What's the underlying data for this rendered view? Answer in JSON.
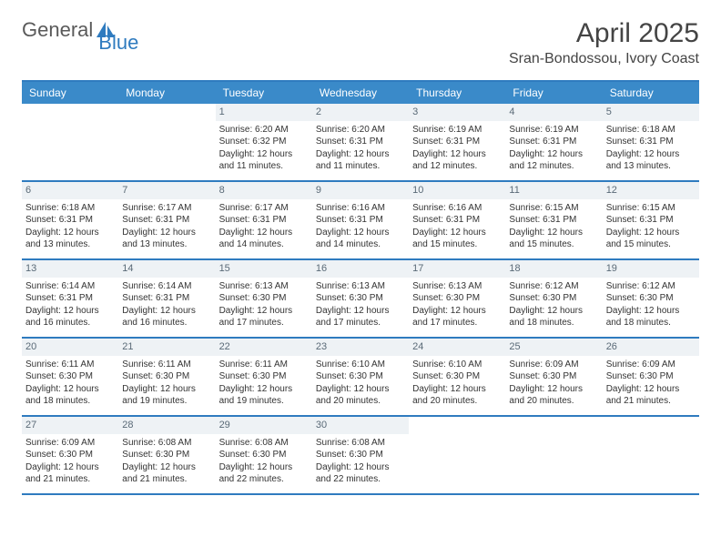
{
  "logo": {
    "text1": "General",
    "text2": "Blue"
  },
  "title": "April 2025",
  "location": "Sran-Bondossou, Ivory Coast",
  "day_names": [
    "Sunday",
    "Monday",
    "Tuesday",
    "Wednesday",
    "Thursday",
    "Friday",
    "Saturday"
  ],
  "colors": {
    "header_bar": "#3a8ac9",
    "rule": "#2f7bbf",
    "daynum_bg": "#eef2f5",
    "text": "#333333"
  },
  "weeks": [
    [
      null,
      null,
      {
        "n": "1",
        "sr": "Sunrise: 6:20 AM",
        "ss": "Sunset: 6:32 PM",
        "dl": "Daylight: 12 hours and 11 minutes."
      },
      {
        "n": "2",
        "sr": "Sunrise: 6:20 AM",
        "ss": "Sunset: 6:31 PM",
        "dl": "Daylight: 12 hours and 11 minutes."
      },
      {
        "n": "3",
        "sr": "Sunrise: 6:19 AM",
        "ss": "Sunset: 6:31 PM",
        "dl": "Daylight: 12 hours and 12 minutes."
      },
      {
        "n": "4",
        "sr": "Sunrise: 6:19 AM",
        "ss": "Sunset: 6:31 PM",
        "dl": "Daylight: 12 hours and 12 minutes."
      },
      {
        "n": "5",
        "sr": "Sunrise: 6:18 AM",
        "ss": "Sunset: 6:31 PM",
        "dl": "Daylight: 12 hours and 13 minutes."
      }
    ],
    [
      {
        "n": "6",
        "sr": "Sunrise: 6:18 AM",
        "ss": "Sunset: 6:31 PM",
        "dl": "Daylight: 12 hours and 13 minutes."
      },
      {
        "n": "7",
        "sr": "Sunrise: 6:17 AM",
        "ss": "Sunset: 6:31 PM",
        "dl": "Daylight: 12 hours and 13 minutes."
      },
      {
        "n": "8",
        "sr": "Sunrise: 6:17 AM",
        "ss": "Sunset: 6:31 PM",
        "dl": "Daylight: 12 hours and 14 minutes."
      },
      {
        "n": "9",
        "sr": "Sunrise: 6:16 AM",
        "ss": "Sunset: 6:31 PM",
        "dl": "Daylight: 12 hours and 14 minutes."
      },
      {
        "n": "10",
        "sr": "Sunrise: 6:16 AM",
        "ss": "Sunset: 6:31 PM",
        "dl": "Daylight: 12 hours and 15 minutes."
      },
      {
        "n": "11",
        "sr": "Sunrise: 6:15 AM",
        "ss": "Sunset: 6:31 PM",
        "dl": "Daylight: 12 hours and 15 minutes."
      },
      {
        "n": "12",
        "sr": "Sunrise: 6:15 AM",
        "ss": "Sunset: 6:31 PM",
        "dl": "Daylight: 12 hours and 15 minutes."
      }
    ],
    [
      {
        "n": "13",
        "sr": "Sunrise: 6:14 AM",
        "ss": "Sunset: 6:31 PM",
        "dl": "Daylight: 12 hours and 16 minutes."
      },
      {
        "n": "14",
        "sr": "Sunrise: 6:14 AM",
        "ss": "Sunset: 6:31 PM",
        "dl": "Daylight: 12 hours and 16 minutes."
      },
      {
        "n": "15",
        "sr": "Sunrise: 6:13 AM",
        "ss": "Sunset: 6:30 PM",
        "dl": "Daylight: 12 hours and 17 minutes."
      },
      {
        "n": "16",
        "sr": "Sunrise: 6:13 AM",
        "ss": "Sunset: 6:30 PM",
        "dl": "Daylight: 12 hours and 17 minutes."
      },
      {
        "n": "17",
        "sr": "Sunrise: 6:13 AM",
        "ss": "Sunset: 6:30 PM",
        "dl": "Daylight: 12 hours and 17 minutes."
      },
      {
        "n": "18",
        "sr": "Sunrise: 6:12 AM",
        "ss": "Sunset: 6:30 PM",
        "dl": "Daylight: 12 hours and 18 minutes."
      },
      {
        "n": "19",
        "sr": "Sunrise: 6:12 AM",
        "ss": "Sunset: 6:30 PM",
        "dl": "Daylight: 12 hours and 18 minutes."
      }
    ],
    [
      {
        "n": "20",
        "sr": "Sunrise: 6:11 AM",
        "ss": "Sunset: 6:30 PM",
        "dl": "Daylight: 12 hours and 18 minutes."
      },
      {
        "n": "21",
        "sr": "Sunrise: 6:11 AM",
        "ss": "Sunset: 6:30 PM",
        "dl": "Daylight: 12 hours and 19 minutes."
      },
      {
        "n": "22",
        "sr": "Sunrise: 6:11 AM",
        "ss": "Sunset: 6:30 PM",
        "dl": "Daylight: 12 hours and 19 minutes."
      },
      {
        "n": "23",
        "sr": "Sunrise: 6:10 AM",
        "ss": "Sunset: 6:30 PM",
        "dl": "Daylight: 12 hours and 20 minutes."
      },
      {
        "n": "24",
        "sr": "Sunrise: 6:10 AM",
        "ss": "Sunset: 6:30 PM",
        "dl": "Daylight: 12 hours and 20 minutes."
      },
      {
        "n": "25",
        "sr": "Sunrise: 6:09 AM",
        "ss": "Sunset: 6:30 PM",
        "dl": "Daylight: 12 hours and 20 minutes."
      },
      {
        "n": "26",
        "sr": "Sunrise: 6:09 AM",
        "ss": "Sunset: 6:30 PM",
        "dl": "Daylight: 12 hours and 21 minutes."
      }
    ],
    [
      {
        "n": "27",
        "sr": "Sunrise: 6:09 AM",
        "ss": "Sunset: 6:30 PM",
        "dl": "Daylight: 12 hours and 21 minutes."
      },
      {
        "n": "28",
        "sr": "Sunrise: 6:08 AM",
        "ss": "Sunset: 6:30 PM",
        "dl": "Daylight: 12 hours and 21 minutes."
      },
      {
        "n": "29",
        "sr": "Sunrise: 6:08 AM",
        "ss": "Sunset: 6:30 PM",
        "dl": "Daylight: 12 hours and 22 minutes."
      },
      {
        "n": "30",
        "sr": "Sunrise: 6:08 AM",
        "ss": "Sunset: 6:30 PM",
        "dl": "Daylight: 12 hours and 22 minutes."
      },
      null,
      null,
      null
    ]
  ]
}
